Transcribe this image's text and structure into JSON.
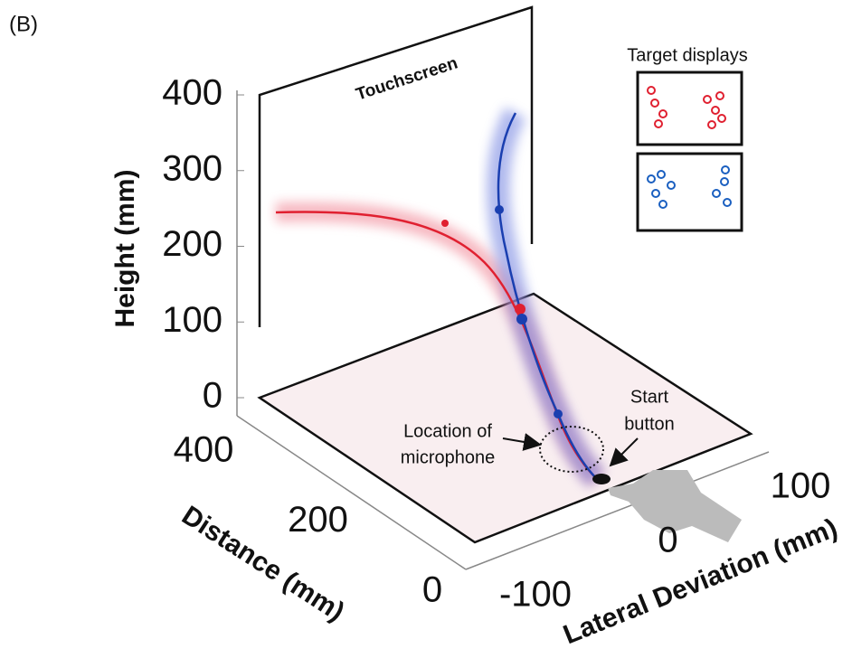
{
  "panel_label": "(B)",
  "touchscreen_label": "Touchscreen",
  "inset": {
    "title": "Target displays"
  },
  "axes": {
    "height": {
      "label": "Height (mm)",
      "ticks": [
        0,
        100,
        200,
        300,
        400
      ]
    },
    "distance": {
      "label": "Distance (mm)",
      "ticks": [
        0,
        200,
        400
      ]
    },
    "lateral": {
      "label": "Lateral Deviation (mm)",
      "ticks": [
        -100,
        0,
        100
      ]
    }
  },
  "annotations": {
    "microphone": [
      "Location of",
      "microphone"
    ],
    "start": [
      "Start",
      "button"
    ]
  }
}
